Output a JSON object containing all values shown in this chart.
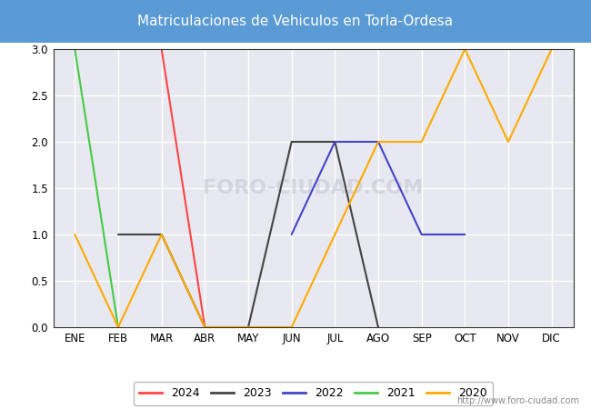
{
  "title": "Matriculaciones de Vehiculos en Torla-Ordesa",
  "title_bg_color": "#5b9bd5",
  "title_text_color": "#ffffff",
  "months": [
    "ENE",
    "FEB",
    "MAR",
    "ABR",
    "MAY",
    "JUN",
    "JUL",
    "AGO",
    "SEP",
    "OCT",
    "NOV",
    "DIC"
  ],
  "series": {
    "2024": {
      "color": "#ff4444",
      "data": [
        null,
        null,
        3.0,
        0.0,
        null,
        null,
        null,
        null,
        null,
        null,
        null,
        null
      ]
    },
    "2023": {
      "color": "#444444",
      "data": [
        null,
        1.0,
        1.0,
        0.0,
        0.0,
        2.0,
        2.0,
        0.0,
        null,
        null,
        null,
        null
      ]
    },
    "2022": {
      "color": "#4444cc",
      "data": [
        null,
        null,
        null,
        null,
        null,
        1.0,
        2.0,
        2.0,
        1.0,
        1.0,
        null,
        null
      ]
    },
    "2021": {
      "color": "#44cc44",
      "data": [
        3.0,
        0.0,
        null,
        null,
        null,
        null,
        null,
        null,
        null,
        null,
        null,
        null
      ]
    },
    "2020": {
      "color": "#ffaa00",
      "data": [
        1.0,
        0.0,
        1.0,
        0.0,
        0.0,
        0.0,
        1.0,
        2.0,
        2.0,
        3.0,
        2.0,
        3.0
      ]
    }
  },
  "ylim": [
    0,
    3.0
  ],
  "yticks": [
    0.0,
    0.5,
    1.0,
    1.5,
    2.0,
    2.5,
    3.0
  ],
  "watermark_text": "FORO-CIUDAD.COM",
  "watermark_url": "http://www.foro-ciudad.com",
  "plot_bg_color": "#e8e8f0",
  "grid_color": "#ffffff",
  "legend_order": [
    "2024",
    "2023",
    "2022",
    "2021",
    "2020"
  ]
}
